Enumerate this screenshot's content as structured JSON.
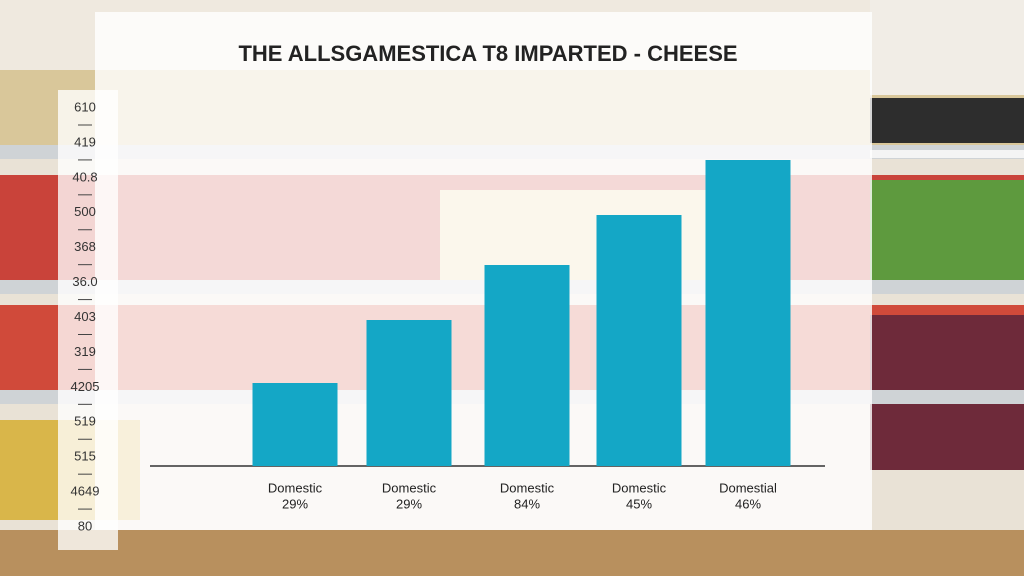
{
  "chart_data": {
    "type": "bar",
    "title": "THE ALLSGAMESTICA T8 IMPARTED - CHEESE",
    "y_labels": [
      "610",
      "419",
      "40.8",
      "500",
      "368",
      "36.0",
      "403",
      "319",
      "4205",
      "519",
      "515",
      "4649",
      "80"
    ],
    "categories": [
      "Domestic",
      "Domestic",
      "Domestic",
      "Domestic",
      "Domestial"
    ],
    "category_sublabels": [
      "29%",
      "29%",
      "84%",
      "45%",
      "46%"
    ],
    "values": [
      83,
      146,
      201,
      251,
      306
    ],
    "ylim": [
      0,
      320
    ],
    "color": "#14a7c6"
  }
}
